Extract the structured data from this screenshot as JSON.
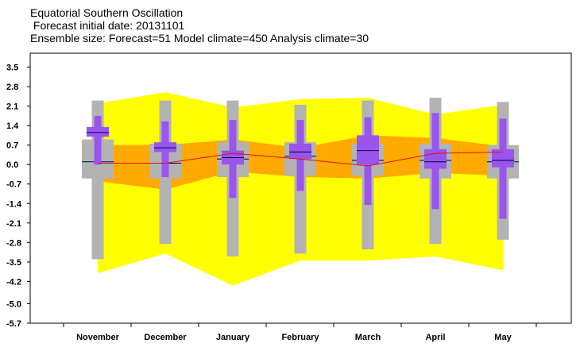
{
  "header": {
    "line1": "Equatorial Southern Oscillation",
    "line2": " Forecast initial date: 20131101",
    "line3": "Ensemble size: Forecast=51 Model climate=450 Analysis climate=30"
  },
  "chart_data": {
    "type": "box",
    "title": "Equatorial Southern Oscillation",
    "categories": [
      "November",
      "December",
      "January",
      "February",
      "March",
      "April",
      "May"
    ],
    "y_ticks": [
      "3.5",
      "2.8",
      "2.1",
      "1.4",
      "0.7",
      "0.0",
      "-0.7",
      "-1.4",
      "-2.1",
      "-2.8",
      "-3.5",
      "-4.2",
      "-5.0",
      "-5.7"
    ],
    "ylim": [
      -5.7,
      4.0
    ],
    "colors": {
      "outer_band": "#ffff00",
      "inner_band": "#ffaa00",
      "climate_box": "#b3b3b3",
      "forecast_box": "#9955ee",
      "median_line": "#e01010",
      "climate_median": "#000060"
    },
    "climate_band_outer": {
      "upper": [
        2.2,
        2.6,
        2.05,
        2.35,
        2.4,
        1.8,
        2.15
      ],
      "lower": [
        -3.9,
        -3.2,
        -4.35,
        -3.45,
        -3.45,
        -3.3,
        -3.8
      ]
    },
    "climate_band_inner": {
      "upper": [
        0.7,
        0.7,
        0.9,
        0.6,
        1.05,
        0.95,
        0.65
      ],
      "lower": [
        -0.6,
        -0.9,
        -0.25,
        -0.45,
        -0.5,
        -0.3,
        -0.4
      ]
    },
    "climate_boxes": [
      {
        "p0": -3.4,
        "p10": -0.5,
        "p90": 0.9,
        "p100": 2.3,
        "median": 0.1
      },
      {
        "p0": -2.85,
        "p10": -0.5,
        "p90": 0.75,
        "p100": 2.3,
        "median": 0.05
      },
      {
        "p0": -3.3,
        "p10": -0.45,
        "p90": 0.8,
        "p100": 2.3,
        "median": 0.2
      },
      {
        "p0": -3.2,
        "p10": -0.4,
        "p90": 0.8,
        "p100": 2.15,
        "median": 0.3
      },
      {
        "p0": -3.05,
        "p10": -0.4,
        "p90": 0.75,
        "p100": 2.3,
        "median": 0.15
      },
      {
        "p0": -2.85,
        "p10": -0.5,
        "p90": 0.75,
        "p100": 2.4,
        "median": 0.15
      },
      {
        "p0": -2.7,
        "p10": -0.5,
        "p90": 0.7,
        "p100": 2.25,
        "median": 0.1
      }
    ],
    "forecast_boxes": [
      {
        "min": 0.0,
        "p25": 1.0,
        "p75": 1.35,
        "max": 1.75,
        "median": 1.15
      },
      {
        "min": -0.45,
        "p25": 0.45,
        "p75": 0.8,
        "max": 1.55,
        "median": 0.6
      },
      {
        "min": -1.2,
        "p25": 0.0,
        "p75": 0.5,
        "max": 1.6,
        "median": 0.25
      },
      {
        "min": -0.95,
        "p25": 0.2,
        "p75": 0.75,
        "max": 1.6,
        "median": 0.45
      },
      {
        "min": -1.45,
        "p25": 0.0,
        "p75": 1.05,
        "max": 1.7,
        "median": 0.5
      },
      {
        "min": -1.6,
        "p25": -0.15,
        "p75": 0.55,
        "max": 1.85,
        "median": 0.1
      },
      {
        "min": -1.95,
        "p25": -0.1,
        "p75": 0.55,
        "max": 1.65,
        "median": 0.15
      }
    ],
    "ensemble_mean_line": [
      0.05,
      0.05,
      0.4,
      0.2,
      -0.05,
      0.4,
      0.45
    ]
  }
}
